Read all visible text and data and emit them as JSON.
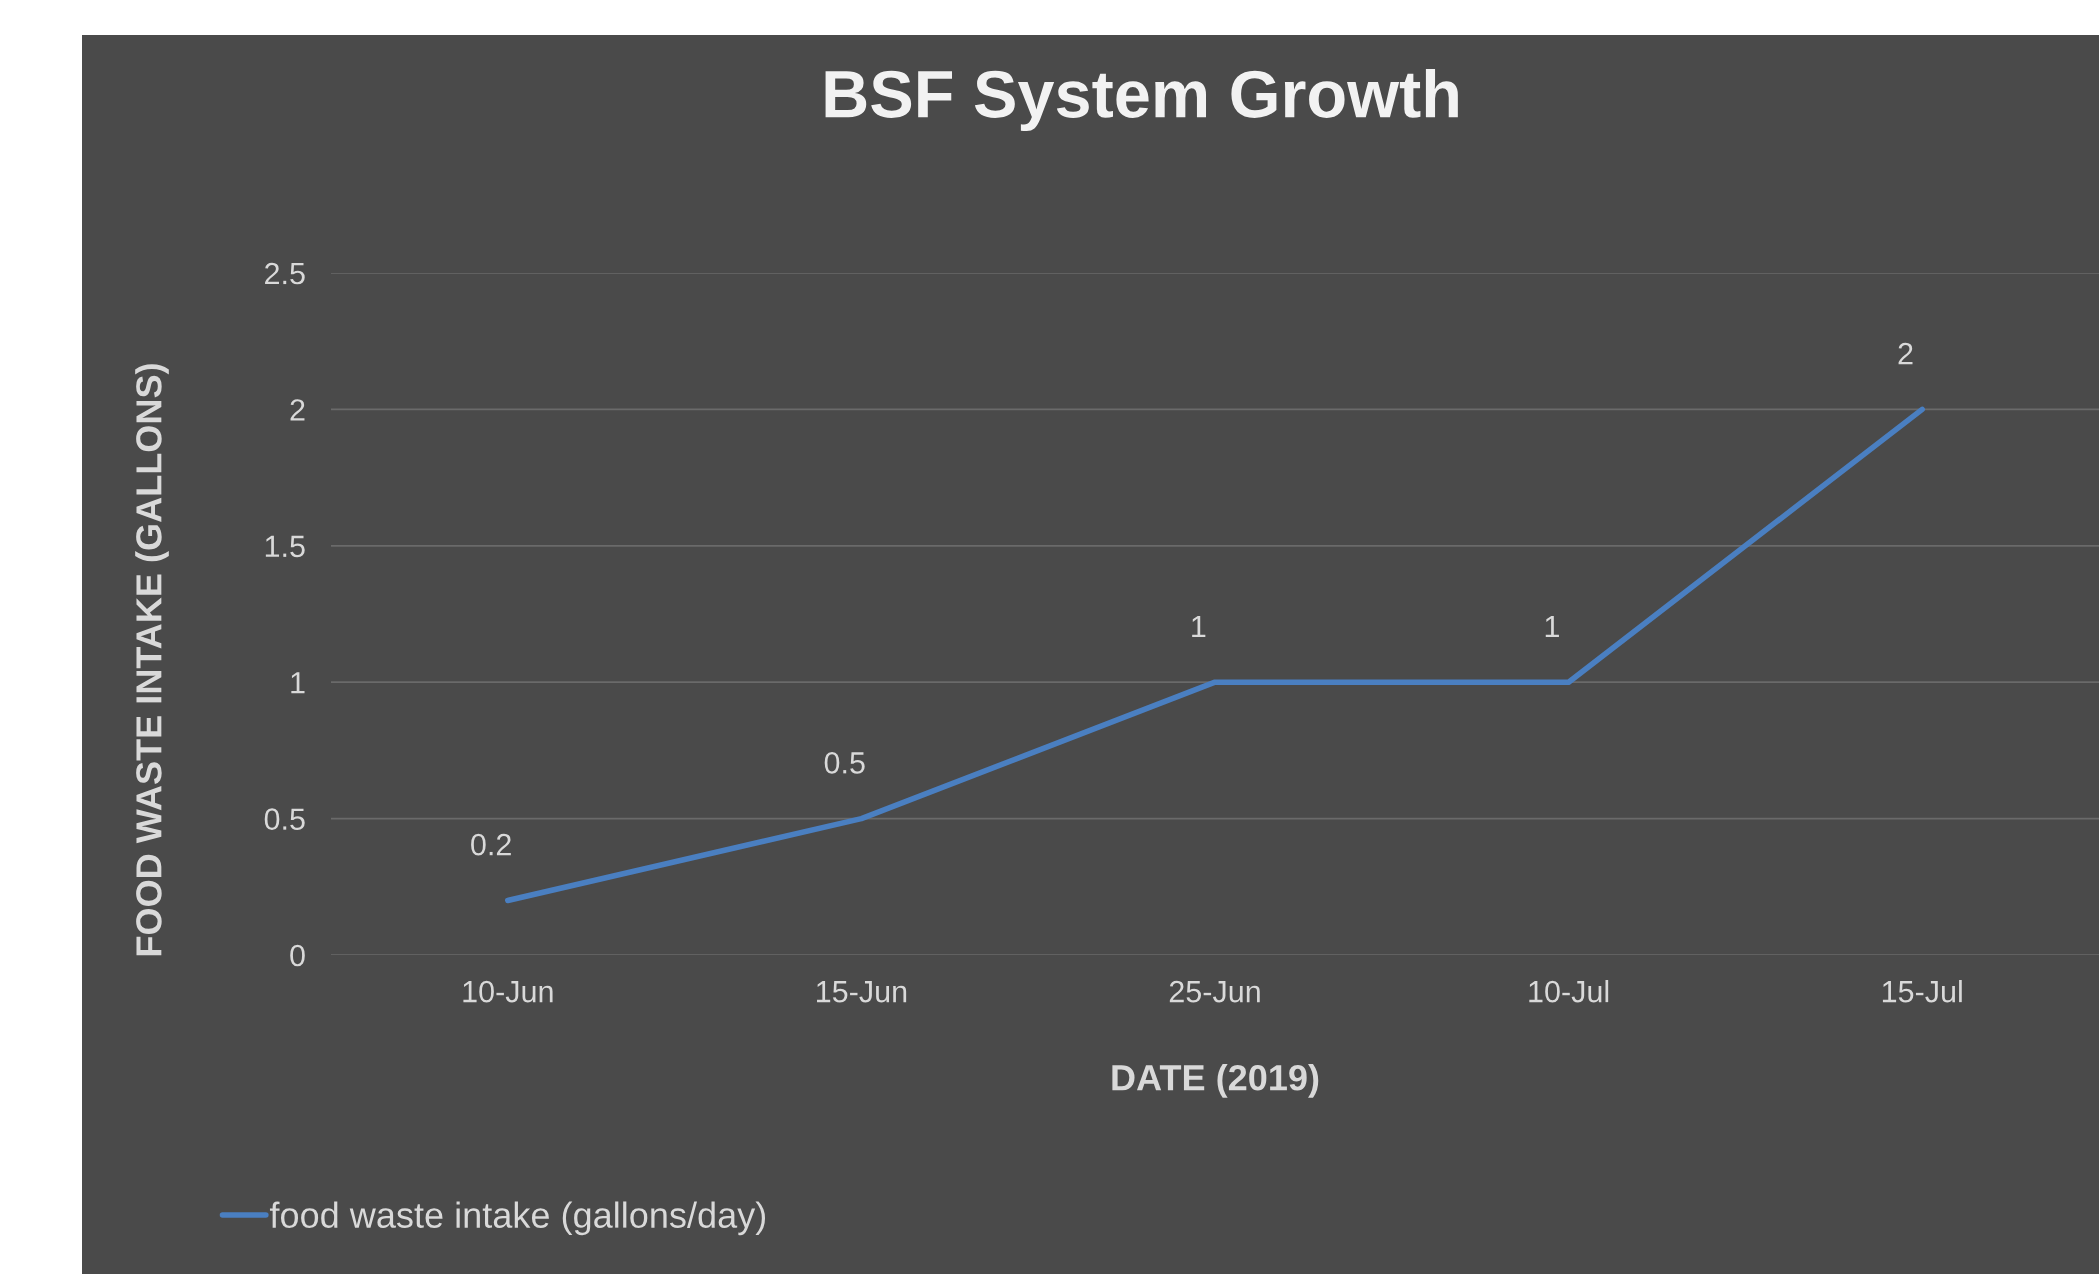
{
  "chart_data": {
    "type": "line",
    "title": "BSF System Growth",
    "xlabel": "DATE (2019)",
    "ylabel": "FOOD WASTE INTAKE (GALLONS)",
    "categories": [
      "10-Jun",
      "15-Jun",
      "25-Jun",
      "10-Jul",
      "15-Jul"
    ],
    "series": [
      {
        "name": "food waste intake (gallons/day)",
        "color": "#4a7fc1",
        "values": [
          0.2,
          0.5,
          1,
          1,
          2
        ]
      }
    ],
    "ylim": [
      0,
      2.5
    ],
    "yticks": [
      0,
      0.5,
      1,
      1.5,
      2,
      2.5
    ],
    "grid": "y",
    "legend": "bottom left",
    "data_labels": true,
    "marker": "none",
    "line_style": "solid"
  }
}
